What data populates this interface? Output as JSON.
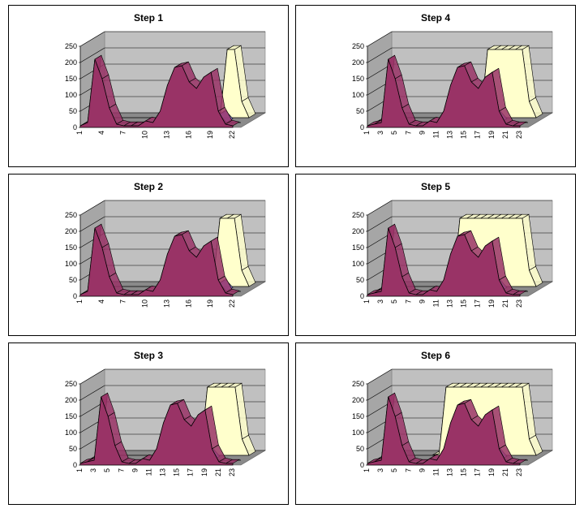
{
  "colors": {
    "back_wall": "#c0c0c0",
    "floor": "#8a8a8a",
    "main_series": "#993366",
    "back_series": "#ffffcc",
    "small_series": "#9999ff",
    "outline": "#000000"
  },
  "chart_data": [
    {
      "type": "area",
      "title": "Step 1",
      "x": [
        1,
        2,
        3,
        4,
        5,
        6,
        7,
        8,
        9,
        10,
        11,
        12,
        13,
        14,
        15,
        16,
        17,
        18,
        19,
        20,
        21,
        22
      ],
      "x_tick_labels": [
        "1",
        "4",
        "7",
        "10",
        "13",
        "16",
        "19",
        "22"
      ],
      "ylim": [
        0,
        250
      ],
      "y_ticks": [
        "0",
        "50",
        "100",
        "150",
        "200",
        "250"
      ],
      "series": [
        {
          "values": [
            5,
            15,
            210,
            150,
            60,
            10,
            5,
            5,
            5,
            20,
            15,
            50,
            130,
            185,
            190,
            140,
            120,
            155,
            170,
            50,
            10,
            5
          ]
        },
        {
          "values": [
            0,
            0,
            0,
            0,
            0,
            0,
            0,
            0,
            0,
            0,
            0,
            0,
            0,
            0,
            0,
            0,
            0,
            0,
            25,
            0,
            0,
            0
          ]
        },
        {
          "values": [
            0,
            0,
            0,
            0,
            0,
            0,
            0,
            0,
            0,
            0,
            0,
            0,
            0,
            0,
            0,
            0,
            0,
            0,
            210,
            210,
            50,
            0
          ]
        }
      ]
    },
    {
      "type": "area",
      "title": "Step 4",
      "x": [
        1,
        2,
        3,
        4,
        5,
        6,
        7,
        8,
        9,
        10,
        11,
        12,
        13,
        14,
        15,
        16,
        17,
        18,
        19,
        20,
        21,
        22,
        23
      ],
      "x_tick_labels": [
        "1",
        "3",
        "5",
        "7",
        "9",
        "11",
        "13",
        "15",
        "17",
        "19",
        "21",
        "23"
      ],
      "ylim": [
        0,
        250
      ],
      "y_ticks": [
        "0",
        "50",
        "100",
        "150",
        "200",
        "250"
      ],
      "series": [
        {
          "values": [
            5,
            10,
            15,
            210,
            150,
            60,
            10,
            5,
            5,
            20,
            15,
            50,
            130,
            185,
            190,
            140,
            120,
            155,
            170,
            50,
            10,
            5,
            5
          ]
        },
        {
          "values": [
            0,
            0,
            0,
            0,
            0,
            0,
            0,
            0,
            0,
            0,
            0,
            0,
            0,
            0,
            0,
            0,
            0,
            25,
            0,
            0,
            0,
            0,
            0
          ]
        },
        {
          "values": [
            0,
            0,
            0,
            0,
            0,
            0,
            0,
            0,
            0,
            0,
            0,
            0,
            0,
            0,
            0,
            210,
            210,
            210,
            210,
            210,
            210,
            50,
            0
          ]
        }
      ]
    },
    {
      "type": "area",
      "title": "Step 2",
      "x": [
        1,
        2,
        3,
        4,
        5,
        6,
        7,
        8,
        9,
        10,
        11,
        12,
        13,
        14,
        15,
        16,
        17,
        18,
        19,
        20,
        21,
        22
      ],
      "x_tick_labels": [
        "1",
        "4",
        "7",
        "10",
        "13",
        "16",
        "19",
        "22"
      ],
      "ylim": [
        0,
        250
      ],
      "y_ticks": [
        "0",
        "50",
        "100",
        "150",
        "200",
        "250"
      ],
      "series": [
        {
          "values": [
            5,
            15,
            210,
            150,
            60,
            10,
            5,
            5,
            5,
            20,
            15,
            50,
            130,
            185,
            190,
            140,
            120,
            155,
            170,
            50,
            10,
            5
          ]
        },
        {
          "values": [
            0,
            0,
            0,
            0,
            0,
            0,
            0,
            0,
            0,
            0,
            0,
            0,
            0,
            0,
            0,
            0,
            0,
            0,
            25,
            0,
            0,
            0
          ]
        },
        {
          "values": [
            0,
            0,
            0,
            0,
            0,
            0,
            0,
            0,
            0,
            0,
            0,
            0,
            0,
            0,
            0,
            0,
            0,
            210,
            210,
            210,
            50,
            0
          ]
        }
      ]
    },
    {
      "type": "area",
      "title": "Step 5",
      "x": [
        1,
        2,
        3,
        4,
        5,
        6,
        7,
        8,
        9,
        10,
        11,
        12,
        13,
        14,
        15,
        16,
        17,
        18,
        19,
        20,
        21,
        22,
        23
      ],
      "x_tick_labels": [
        "1",
        "3",
        "5",
        "7",
        "9",
        "11",
        "13",
        "15",
        "17",
        "19",
        "21",
        "23"
      ],
      "ylim": [
        0,
        250
      ],
      "y_ticks": [
        "0",
        "50",
        "100",
        "150",
        "200",
        "250"
      ],
      "series": [
        {
          "values": [
            5,
            10,
            15,
            210,
            150,
            60,
            10,
            5,
            5,
            20,
            15,
            50,
            130,
            185,
            190,
            140,
            120,
            155,
            170,
            50,
            10,
            5,
            5
          ]
        },
        {
          "values": [
            0,
            0,
            0,
            0,
            0,
            0,
            0,
            0,
            0,
            0,
            0,
            0,
            0,
            0,
            0,
            0,
            0,
            25,
            0,
            0,
            0,
            0,
            0
          ]
        },
        {
          "values": [
            0,
            0,
            0,
            0,
            0,
            0,
            0,
            0,
            0,
            0,
            0,
            210,
            210,
            210,
            210,
            210,
            210,
            210,
            210,
            210,
            210,
            50,
            0
          ]
        }
      ]
    },
    {
      "type": "area",
      "title": "Step 3",
      "x": [
        1,
        2,
        3,
        4,
        5,
        6,
        7,
        8,
        9,
        10,
        11,
        12,
        13,
        14,
        15,
        16,
        17,
        18,
        19,
        20,
        21,
        22,
        23
      ],
      "x_tick_labels": [
        "1",
        "3",
        "5",
        "7",
        "9",
        "11",
        "13",
        "15",
        "17",
        "19",
        "21",
        "23"
      ],
      "ylim": [
        0,
        250
      ],
      "y_ticks": [
        "0",
        "50",
        "100",
        "150",
        "200",
        "250"
      ],
      "series": [
        {
          "values": [
            5,
            10,
            15,
            210,
            150,
            60,
            10,
            5,
            5,
            20,
            15,
            50,
            130,
            185,
            190,
            140,
            120,
            155,
            170,
            50,
            10,
            5,
            5
          ]
        },
        {
          "values": [
            0,
            0,
            0,
            0,
            0,
            0,
            0,
            0,
            0,
            0,
            0,
            0,
            0,
            0,
            0,
            0,
            0,
            25,
            0,
            0,
            0,
            0,
            0
          ]
        },
        {
          "values": [
            0,
            0,
            0,
            0,
            0,
            0,
            0,
            0,
            0,
            0,
            0,
            0,
            0,
            0,
            0,
            0,
            210,
            210,
            210,
            210,
            210,
            50,
            0
          ]
        }
      ]
    },
    {
      "type": "area",
      "title": "Step 6",
      "x": [
        1,
        2,
        3,
        4,
        5,
        6,
        7,
        8,
        9,
        10,
        11,
        12,
        13,
        14,
        15,
        16,
        17,
        18,
        19,
        20,
        21,
        22,
        23
      ],
      "x_tick_labels": [
        "1",
        "3",
        "5",
        "7",
        "9",
        "11",
        "13",
        "15",
        "17",
        "19",
        "21",
        "23"
      ],
      "ylim": [
        0,
        250
      ],
      "y_ticks": [
        "0",
        "50",
        "100",
        "150",
        "200",
        "250"
      ],
      "series": [
        {
          "values": [
            5,
            10,
            15,
            210,
            150,
            60,
            10,
            5,
            5,
            20,
            15,
            50,
            130,
            185,
            190,
            140,
            120,
            155,
            170,
            50,
            10,
            5,
            5
          ]
        },
        {
          "values": [
            0,
            0,
            0,
            0,
            0,
            0,
            0,
            0,
            0,
            0,
            0,
            0,
            0,
            0,
            0,
            0,
            0,
            25,
            0,
            0,
            0,
            0,
            0
          ]
        },
        {
          "values": [
            0,
            0,
            0,
            0,
            0,
            0,
            0,
            0,
            5,
            210,
            210,
            210,
            210,
            210,
            210,
            210,
            210,
            210,
            210,
            210,
            210,
            50,
            0
          ]
        }
      ]
    }
  ]
}
